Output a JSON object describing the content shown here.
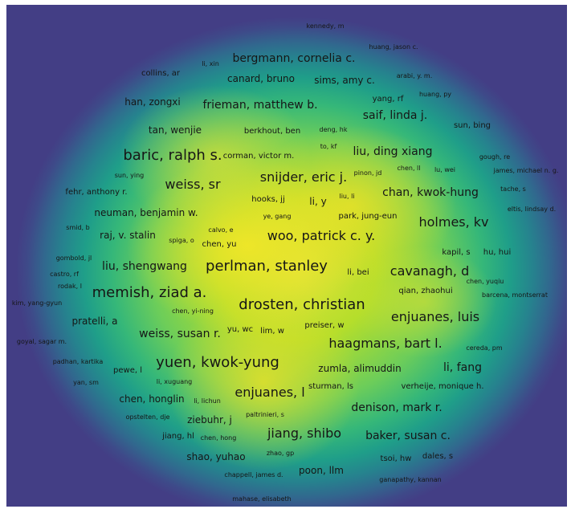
{
  "map": {
    "title": "",
    "colormap": [
      "#433e85",
      "#31688e",
      "#26828e",
      "#1f9e89",
      "#35b779",
      "#6ccd5a",
      "#b5de2b",
      "#dfe33a"
    ],
    "labels": [
      {
        "id": "kennedy-m",
        "text": "kennedy, m"
      },
      {
        "id": "huang-jason-c",
        "text": "huang, jason c."
      },
      {
        "id": "li-xin",
        "text": "li, xin"
      },
      {
        "id": "bergmann-cornelia-c",
        "text": "bergmann, cornelia c."
      },
      {
        "id": "collins-ar",
        "text": "collins, ar"
      },
      {
        "id": "canard-bruno",
        "text": "canard, bruno"
      },
      {
        "id": "sims-amy-c",
        "text": "sims, amy c."
      },
      {
        "id": "arabi-y-m",
        "text": "arabi, y. m."
      },
      {
        "id": "han-zongxi",
        "text": "han, zongxi"
      },
      {
        "id": "frieman-matthew-b",
        "text": "frieman, matthew b."
      },
      {
        "id": "yang-rf",
        "text": "yang, rf"
      },
      {
        "id": "huang-py",
        "text": "huang, py"
      },
      {
        "id": "saif-linda-j",
        "text": "saif, linda j."
      },
      {
        "id": "tan-wenjie",
        "text": "tan, wenjie"
      },
      {
        "id": "berkhout-ben",
        "text": "berkhout, ben"
      },
      {
        "id": "deng-hk",
        "text": "deng, hk"
      },
      {
        "id": "sun-bing",
        "text": "sun, bing"
      },
      {
        "id": "to-kf",
        "text": "to, kf"
      },
      {
        "id": "baric-ralph-s",
        "text": "baric, ralph s."
      },
      {
        "id": "corman-victor-m",
        "text": "corman, victor m."
      },
      {
        "id": "liu-ding-xiang",
        "text": "liu, ding xiang"
      },
      {
        "id": "gough-re",
        "text": "gough, re"
      },
      {
        "id": "sun-ying",
        "text": "sun, ying"
      },
      {
        "id": "snijder-eric-j",
        "text": "snijder, eric j."
      },
      {
        "id": "pinon-jd",
        "text": "pinon, jd"
      },
      {
        "id": "chen-ll",
        "text": "chen, ll"
      },
      {
        "id": "lu-wei",
        "text": "lu, wei"
      },
      {
        "id": "james-michael-n-g",
        "text": "james, michael n. g."
      },
      {
        "id": "weiss-sr",
        "text": "weiss, sr"
      },
      {
        "id": "fehr-anthony-r",
        "text": "fehr, anthony r."
      },
      {
        "id": "hooks-jj",
        "text": "hooks, jj"
      },
      {
        "id": "li-y",
        "text": "li, y"
      },
      {
        "id": "liu-li",
        "text": "liu, li"
      },
      {
        "id": "chan-kwok-hung",
        "text": "chan, kwok-hung"
      },
      {
        "id": "tache-s",
        "text": "tache, s"
      },
      {
        "id": "neuman-benjamin-w",
        "text": "neuman, benjamin w."
      },
      {
        "id": "ye-gang",
        "text": "ye, gang"
      },
      {
        "id": "park-jung-eun",
        "text": "park, jung-eun"
      },
      {
        "id": "eltis-lindsay-d",
        "text": "eltis, lindsay d."
      },
      {
        "id": "holmes-kv",
        "text": "holmes, kv"
      },
      {
        "id": "smid-b",
        "text": "smid, b"
      },
      {
        "id": "raj-v-stalin",
        "text": "raj, v. stalin"
      },
      {
        "id": "calvo-e",
        "text": "calvo, e"
      },
      {
        "id": "spiga-o",
        "text": "spiga, o"
      },
      {
        "id": "chen-yu",
        "text": "chen, yu"
      },
      {
        "id": "woo-patrick-c-y",
        "text": "woo, patrick c. y."
      },
      {
        "id": "kapil-s",
        "text": "kapil, s"
      },
      {
        "id": "hu-hui",
        "text": "hu, hui"
      },
      {
        "id": "gombold-jl",
        "text": "gombold, jl"
      },
      {
        "id": "liu-shengwang",
        "text": "liu, shengwang"
      },
      {
        "id": "perlman-stanley",
        "text": "perlman, stanley"
      },
      {
        "id": "li-bei",
        "text": "li, bei"
      },
      {
        "id": "cavanagh-d",
        "text": "cavanagh, d"
      },
      {
        "id": "castro-rf",
        "text": "castro, rf"
      },
      {
        "id": "chen-yuqiu",
        "text": "chen, yuqiu"
      },
      {
        "id": "rodak-l",
        "text": "rodak, l"
      },
      {
        "id": "memish-ziad-a",
        "text": "memish, ziad a."
      },
      {
        "id": "qian-zhaohui",
        "text": "qian, zhaohui"
      },
      {
        "id": "barcena-montserrat",
        "text": "barcena, montserrat"
      },
      {
        "id": "kim-yang-gyun",
        "text": "kim, yang-gyun"
      },
      {
        "id": "drosten-christian",
        "text": "drosten, christian"
      },
      {
        "id": "chen-yi-ning",
        "text": "chen, yi-ning"
      },
      {
        "id": "enjuanes-luis",
        "text": "enjuanes, luis"
      },
      {
        "id": "pratelli-a",
        "text": "pratelli, a"
      },
      {
        "id": "preiser-w",
        "text": "preiser, w"
      },
      {
        "id": "weiss-susan-r",
        "text": "weiss, susan r."
      },
      {
        "id": "yu-wc",
        "text": "yu, wc"
      },
      {
        "id": "lim-w",
        "text": "lim, w"
      },
      {
        "id": "goyal-sagar-m",
        "text": "goyal, sagar m."
      },
      {
        "id": "haagmans-bart-l",
        "text": "haagmans, bart l."
      },
      {
        "id": "cereda-pm",
        "text": "cereda, pm"
      },
      {
        "id": "padhan-kartika",
        "text": "padhan, kartika"
      },
      {
        "id": "yuen-kwok-yung",
        "text": "yuen, kwok-yung"
      },
      {
        "id": "pewe-l",
        "text": "pewe, l"
      },
      {
        "id": "zumla-alimuddin",
        "text": "zumla, alimuddin"
      },
      {
        "id": "li-fang",
        "text": "li, fang"
      },
      {
        "id": "yan-sm",
        "text": "yan, sm"
      },
      {
        "id": "li-xuguang",
        "text": "li, xuguang"
      },
      {
        "id": "sturman-ls",
        "text": "sturman, ls"
      },
      {
        "id": "verheije-monique-h",
        "text": "verheije, monique h."
      },
      {
        "id": "enjuanes-l",
        "text": "enjuanes, l"
      },
      {
        "id": "chen-honglin",
        "text": "chen, honglin"
      },
      {
        "id": "li-lichun",
        "text": "li, lichun"
      },
      {
        "id": "denison-mark-r",
        "text": "denison, mark r."
      },
      {
        "id": "opstelten-dje",
        "text": "opstelten, dje"
      },
      {
        "id": "ziebuhr-j",
        "text": "ziebuhr, j"
      },
      {
        "id": "paltrinieri-s",
        "text": "paltrinieri, s"
      },
      {
        "id": "jiang-hl",
        "text": "jiang, hl"
      },
      {
        "id": "chen-hong",
        "text": "chen, hong"
      },
      {
        "id": "jiang-shibo",
        "text": "jiang, shibo"
      },
      {
        "id": "baker-susan-c",
        "text": "baker, susan c."
      },
      {
        "id": "shao-yuhao",
        "text": "shao, yuhao"
      },
      {
        "id": "zhao-gp",
        "text": "zhao, gp"
      },
      {
        "id": "tsoi-hw",
        "text": "tsoi, hw"
      },
      {
        "id": "dales-s",
        "text": "dales, s"
      },
      {
        "id": "chappell-james-d",
        "text": "chappell, james d."
      },
      {
        "id": "poon-llm",
        "text": "poon, llm"
      },
      {
        "id": "ganapathy-kannan",
        "text": "ganapathy, kannan"
      },
      {
        "id": "mahase-elisabeth",
        "text": "mahase, elisabeth"
      }
    ]
  }
}
